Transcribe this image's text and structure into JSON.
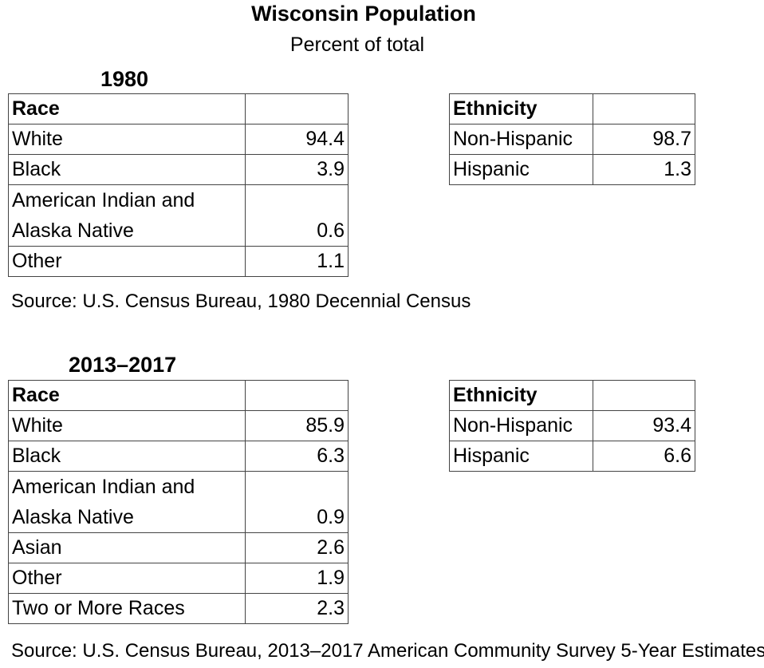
{
  "title": "Wisconsin Population",
  "subtitle": "Percent of total",
  "sections": [
    {
      "year": "1980",
      "race": {
        "header": "Race",
        "rows": [
          {
            "label": "White",
            "value": "94.4"
          },
          {
            "label": "Black",
            "value": "3.9"
          },
          {
            "label": "American Indian and Alaska Native",
            "value": "0.6"
          },
          {
            "label": "Other",
            "value": "1.1"
          }
        ]
      },
      "ethnicity": {
        "header": "Ethnicity",
        "rows": [
          {
            "label": "Non-Hispanic",
            "value": "98.7"
          },
          {
            "label": "Hispanic",
            "value": "1.3"
          }
        ]
      },
      "source": "Source: U.S. Census Bureau, 1980 Decennial Census"
    },
    {
      "year": "2013–2017",
      "race": {
        "header": "Race",
        "rows": [
          {
            "label": "White",
            "value": "85.9"
          },
          {
            "label": "Black",
            "value": "6.3"
          },
          {
            "label": "American Indian and Alaska Native",
            "value": "0.9"
          },
          {
            "label": "Asian",
            "value": "2.6"
          },
          {
            "label": "Other",
            "value": "1.9"
          },
          {
            "label": "Two or More Races",
            "value": "2.3"
          }
        ]
      },
      "ethnicity": {
        "header": "Ethnicity",
        "rows": [
          {
            "label": "Non-Hispanic",
            "value": "93.4"
          },
          {
            "label": "Hispanic",
            "value": "6.6"
          }
        ]
      },
      "source": "Source: U.S. Census Bureau, 2013–2017 American Community Survey 5-Year Estimates"
    }
  ]
}
